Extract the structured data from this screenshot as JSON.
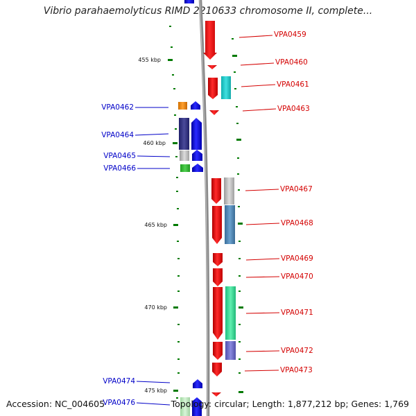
{
  "title": "Vibrio parahaemolyticus RIMD 2210633 chromosome II, complete...",
  "footer": {
    "accession": "Accession: NC_004605",
    "summary": "Topology: circular; Length: 1,877,212 bp; Genes: 1,769"
  },
  "colors": {
    "forward": "#ff0000",
    "reverse": "#0000ff",
    "backbone": "#888888",
    "tick": "#007a00"
  },
  "scale_ticks": [
    "455 kbp",
    "460 kbp",
    "465 kbp",
    "470 kbp",
    "475 kbp"
  ],
  "genes_right": [
    "VPA0459",
    "VPA0460",
    "VPA0461",
    "VPA0463",
    "VPA0467",
    "VPA0468",
    "VPA0469",
    "VPA0470",
    "VPA0471",
    "VPA0472",
    "VPA0473"
  ],
  "genes_left": [
    "VPA0462",
    "VPA0464",
    "VPA0465",
    "VPA0466",
    "VPA0474",
    "VPA0476"
  ]
}
